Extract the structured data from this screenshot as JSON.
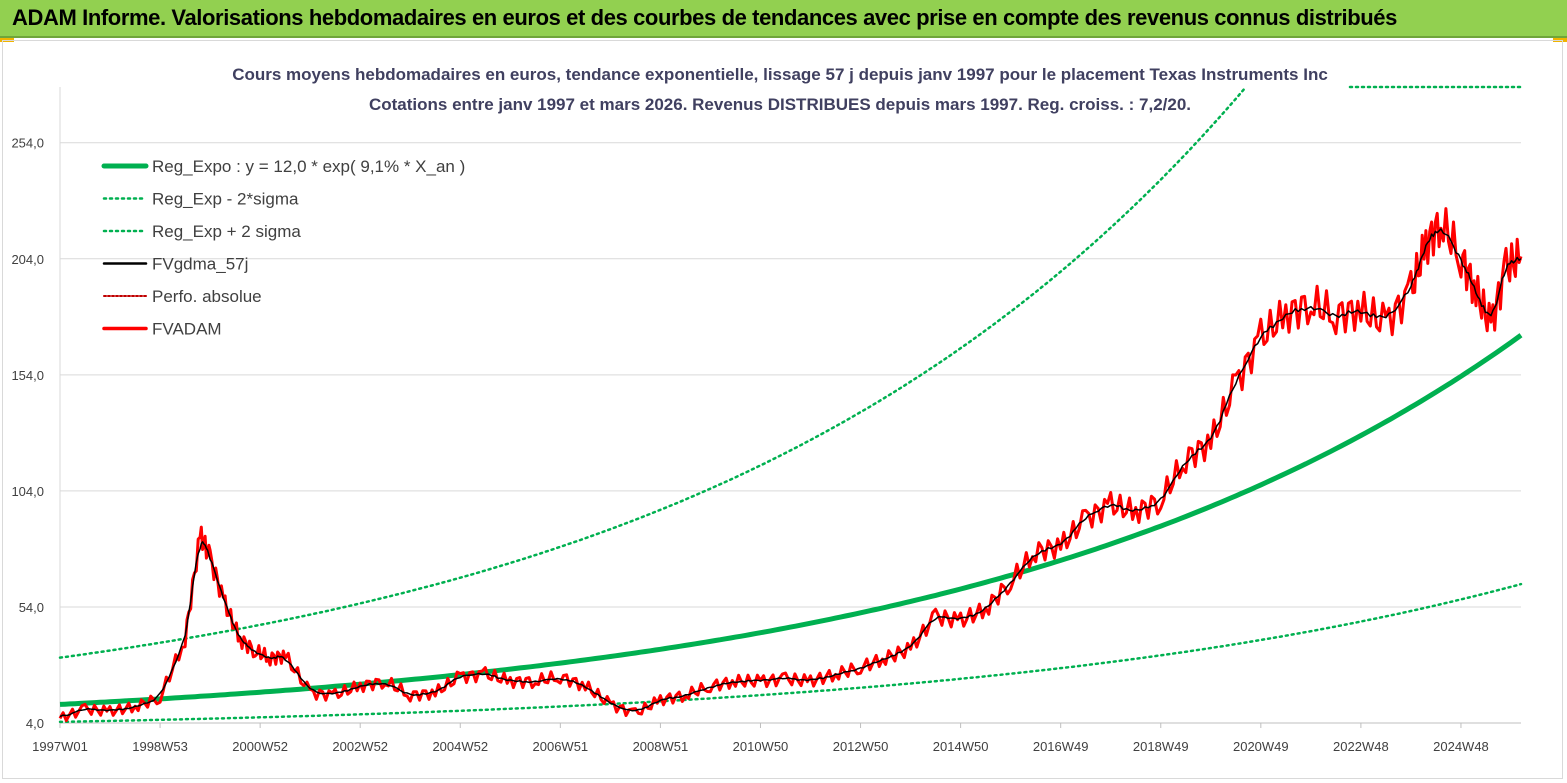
{
  "banner": {
    "title": "ADAM Informe. Valorisations hebdomadaires en euros et des courbes de tendances avec prise en compte des revenus connus distribués"
  },
  "chart_data": {
    "type": "line",
    "title_line1": "Cours moyens hebdomadaires en euros, tendance exponentielle, lissage 57 j depuis janv 1997 pour le placement Texas Instruments Inc",
    "title_line2": "Cotations entre janv 1997 et mars 2026. Revenus DISTRIBUES depuis mars 1997. Reg. croiss. : 7,2/20.",
    "y_ticks": [
      "4,0",
      "54,0",
      "104,0",
      "154,0",
      "204,0",
      "254,0"
    ],
    "ylim": [
      4,
      278
    ],
    "x_ticks": [
      "1997W01",
      "1998W53",
      "2000W52",
      "2002W52",
      "2004W52",
      "2006W51",
      "2008W51",
      "2010W50",
      "2012W50",
      "2014W50",
      "2016W49",
      "2018W49",
      "2020W49",
      "2022W48",
      "2024W48"
    ],
    "xlim": [
      1997.0,
      2026.2
    ],
    "grid": "horizontal",
    "legend_position": "top-left",
    "colors": {
      "trend": "#00b050",
      "bands": "#00b050",
      "smooth": "#000000",
      "perf": "#c00000",
      "adam": "#ff0000"
    },
    "regression": {
      "a": 12.0,
      "rate": 0.091,
      "sigma_factor": 2.68
    },
    "series": [
      {
        "name": "Reg_Expo : y = 12,0 * exp( 9,1% *  X_an )",
        "style": "thick"
      },
      {
        "name": "Reg_Exp - 2*sigma",
        "style": "dotted"
      },
      {
        "name": "Reg_Exp + 2 sigma",
        "style": "dotted"
      },
      {
        "name": "FVgdma_57j",
        "style": "thin-black"
      },
      {
        "name": "Perfo. absolue",
        "style": "dotted-red"
      },
      {
        "name": "FVADAM",
        "style": "thick-red",
        "x": [
          1997.0,
          1997.5,
          1998.0,
          1998.5,
          1999.0,
          1999.5,
          1999.8,
          2000.0,
          2000.3,
          2000.6,
          2000.9,
          2001.2,
          2001.5,
          2002.0,
          2002.5,
          2003.0,
          2003.5,
          2004.0,
          2004.5,
          2005.0,
          2005.5,
          2006.0,
          2006.5,
          2007.0,
          2007.5,
          2008.0,
          2008.5,
          2009.0,
          2009.5,
          2010.0,
          2010.5,
          2011.0,
          2011.5,
          2012.0,
          2012.5,
          2013.0,
          2013.5,
          2014.0,
          2014.5,
          2015.0,
          2015.5,
          2016.0,
          2016.5,
          2017.0,
          2017.5,
          2018.0,
          2018.5,
          2019.0,
          2019.5,
          2020.0,
          2020.5,
          2021.0,
          2021.5,
          2022.0,
          2022.5,
          2023.0,
          2023.5,
          2024.0,
          2024.3,
          2024.6,
          2025.0,
          2025.3,
          2025.6,
          2025.9,
          2026.2
        ],
        "y": [
          6,
          10,
          9,
          11,
          15,
          40,
          85,
          75,
          55,
          40,
          35,
          32,
          33,
          17,
          16,
          20,
          22,
          16,
          17,
          24,
          25,
          22,
          22,
          24,
          20,
          12,
          8,
          14,
          16,
          20,
          22,
          22,
          23,
          22,
          25,
          28,
          32,
          36,
          50,
          48,
          53,
          65,
          78,
          80,
          92,
          98,
          95,
          100,
          118,
          125,
          150,
          170,
          180,
          185,
          180,
          182,
          176,
          190,
          210,
          220,
          205,
          190,
          175,
          200,
          205
        ]
      }
    ]
  }
}
